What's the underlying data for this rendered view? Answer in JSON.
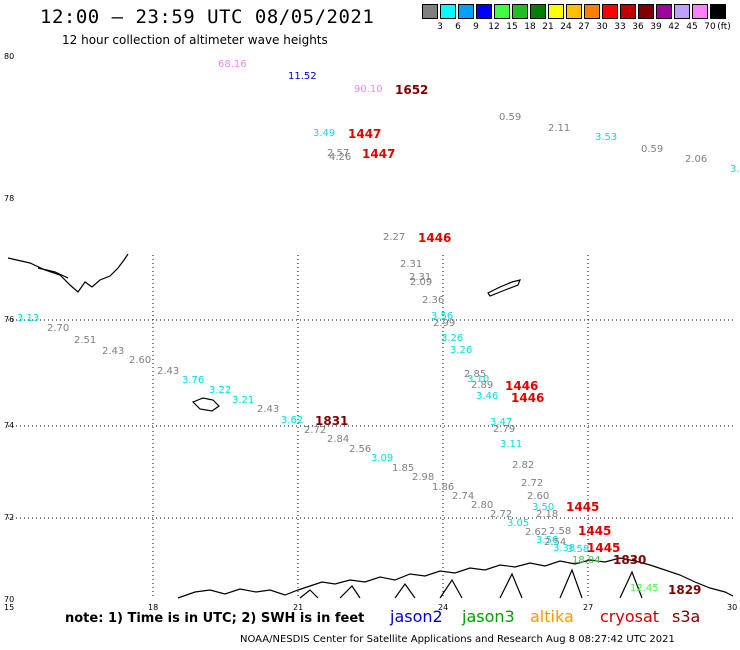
{
  "title": "12:00 – 23:59 UTC 08/05/2021",
  "subtitle": "12 hour collection of altimeter wave heights",
  "legend": {
    "unit_label": "(ft)",
    "entries": [
      {
        "label": "3",
        "color": "#808080"
      },
      {
        "label": "6",
        "color": "#00ffff"
      },
      {
        "label": "9",
        "color": "#00a0ff"
      },
      {
        "label": "12",
        "color": "#0000ff"
      },
      {
        "label": "15",
        "color": "#40ff40"
      },
      {
        "label": "18",
        "color": "#20c020"
      },
      {
        "label": "21",
        "color": "#008000"
      },
      {
        "label": "24",
        "color": "#ffff00"
      },
      {
        "label": "27",
        "color": "#ffc000"
      },
      {
        "label": "30",
        "color": "#ff8000"
      },
      {
        "label": "33",
        "color": "#ff0000"
      },
      {
        "label": "36",
        "color": "#c00000"
      },
      {
        "label": "39",
        "color": "#800000"
      },
      {
        "label": "42",
        "color": "#a000a0"
      },
      {
        "label": "45",
        "color": "#c0a0ff"
      },
      {
        "label": "70",
        "color": "#ff80ff"
      },
      {
        "label": "",
        "color": "#000000"
      }
    ]
  },
  "axes": {
    "lat_labels": [
      "80",
      "78",
      "76",
      "74",
      "72",
      "70"
    ],
    "lon_labels": [
      "15",
      "18",
      "21",
      "24",
      "27",
      "30"
    ]
  },
  "wave_heights": [
    {
      "text": "68.16",
      "color": "#ff80ff"
    },
    {
      "text": "11.52",
      "color": "#0000ff"
    },
    {
      "text": "90.10",
      "color": "#ff80ff"
    },
    {
      "text": "0.59",
      "color": "#808080"
    },
    {
      "text": "2.11",
      "color": "#808080"
    },
    {
      "text": "3.53",
      "color": "#00e0e0"
    },
    {
      "text": "0.59",
      "color": "#808080"
    },
    {
      "text": "2.06",
      "color": "#808080"
    },
    {
      "text": "3.",
      "color": "#00e0e0"
    },
    {
      "text": "3.49",
      "color": "#00e0e0"
    },
    {
      "text": "2.57",
      "color": "#808080"
    },
    {
      "text": "4.26",
      "color": "#808080"
    },
    {
      "text": "2.27",
      "color": "#808080"
    },
    {
      "text": "2.31",
      "color": "#808080"
    },
    {
      "text": "2.31",
      "color": "#808080"
    },
    {
      "text": "2.09",
      "color": "#808080"
    },
    {
      "text": "2.36",
      "color": "#808080"
    },
    {
      "text": "3.56",
      "color": "#00e0e0"
    },
    {
      "text": "2.99",
      "color": "#808080"
    },
    {
      "text": "3.26",
      "color": "#00e0e0"
    },
    {
      "text": "3.26",
      "color": "#00e0e0"
    },
    {
      "text": "3.13",
      "color": "#00e0e0"
    },
    {
      "text": "2.70",
      "color": "#808080"
    },
    {
      "text": "2.51",
      "color": "#808080"
    },
    {
      "text": "2.43",
      "color": "#808080"
    },
    {
      "text": "2.60",
      "color": "#808080"
    },
    {
      "text": "2.43",
      "color": "#808080"
    },
    {
      "text": "3.76",
      "color": "#00e0e0"
    },
    {
      "text": "3.22",
      "color": "#00e0e0"
    },
    {
      "text": "3.21",
      "color": "#00e0e0"
    },
    {
      "text": "2.43",
      "color": "#808080"
    },
    {
      "text": "3.62",
      "color": "#00e0e0"
    },
    {
      "text": "2.72",
      "color": "#808080"
    },
    {
      "text": "2.84",
      "color": "#808080"
    },
    {
      "text": "2.56",
      "color": "#808080"
    },
    {
      "text": "3.09",
      "color": "#00e0e0"
    },
    {
      "text": "1.85",
      "color": "#808080"
    },
    {
      "text": "2.98",
      "color": "#808080"
    },
    {
      "text": "1.86",
      "color": "#808080"
    },
    {
      "text": "2.74",
      "color": "#808080"
    },
    {
      "text": "2.80",
      "color": "#808080"
    },
    {
      "text": "2.72",
      "color": "#808080"
    },
    {
      "text": "2.85",
      "color": "#808080"
    },
    {
      "text": "3.10",
      "color": "#00e0e0"
    },
    {
      "text": "2.89",
      "color": "#808080"
    },
    {
      "text": "3.46",
      "color": "#00e0e0"
    },
    {
      "text": "3.47",
      "color": "#00e0e0"
    },
    {
      "text": "2.79",
      "color": "#808080"
    },
    {
      "text": "3.11",
      "color": "#00e0e0"
    },
    {
      "text": "2.82",
      "color": "#808080"
    },
    {
      "text": "2.72",
      "color": "#808080"
    },
    {
      "text": "2.60",
      "color": "#808080"
    },
    {
      "text": "3.50",
      "color": "#00e0e0"
    },
    {
      "text": "2.18",
      "color": "#808080"
    },
    {
      "text": "3.05",
      "color": "#00e0e0"
    },
    {
      "text": "2.62",
      "color": "#808080"
    },
    {
      "text": "2.58",
      "color": "#808080"
    },
    {
      "text": "3.56",
      "color": "#00e0e0"
    },
    {
      "text": "2.54",
      "color": "#808080"
    },
    {
      "text": "3.38",
      "color": "#00e0e0"
    },
    {
      "text": "3.58",
      "color": "#00e0e0"
    },
    {
      "text": "18.04",
      "color": "#40c040"
    },
    {
      "text": "12.45",
      "color": "#40ff40"
    }
  ],
  "times": [
    {
      "text": "1652",
      "color": "#800000"
    },
    {
      "text": "1447",
      "color": "#e00000"
    },
    {
      "text": "1447",
      "color": "#e00000"
    },
    {
      "text": "1446",
      "color": "#e00000"
    },
    {
      "text": "1831",
      "color": "#800000"
    },
    {
      "text": "1446",
      "color": "#e00000"
    },
    {
      "text": "1446",
      "color": "#e00000"
    },
    {
      "text": "1445",
      "color": "#e00000"
    },
    {
      "text": "1445",
      "color": "#e00000"
    },
    {
      "text": "1445",
      "color": "#e00000"
    },
    {
      "text": "1830",
      "color": "#800000"
    },
    {
      "text": "1829",
      "color": "#800000"
    }
  ],
  "note": "note: 1) Time is in UTC; 2) SWH is in feet",
  "satellites": [
    {
      "name": "jason2",
      "color": "#0000cc"
    },
    {
      "name": "jason3",
      "color": "#00a000"
    },
    {
      "name": "altika",
      "color": "#ff9900"
    },
    {
      "name": "cryosat",
      "color": "#cc0000"
    },
    {
      "name": "s3a",
      "color": "#800000"
    }
  ],
  "footer": "NOAA/NESDIS Center for Satellite Applications and Research    Aug  8 08:27:42 UTC 2021"
}
